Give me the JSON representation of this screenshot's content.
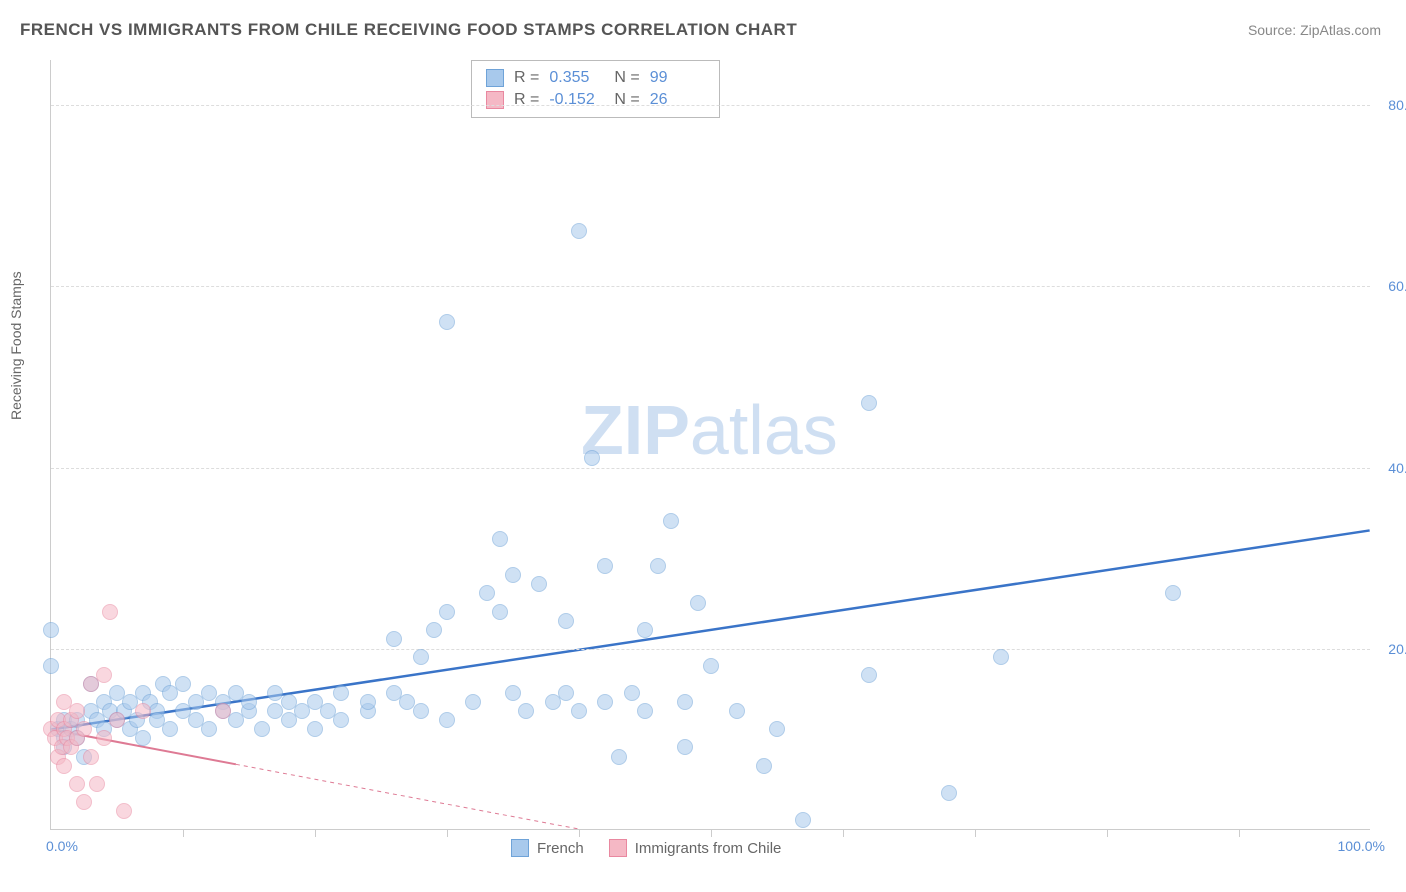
{
  "title": "FRENCH VS IMMIGRANTS FROM CHILE RECEIVING FOOD STAMPS CORRELATION CHART",
  "source": "Source: ZipAtlas.com",
  "watermark_zip": "ZIP",
  "watermark_atlas": "atlas",
  "y_axis_label": "Receiving Food Stamps",
  "chart": {
    "type": "scatter",
    "xlim": [
      0,
      100
    ],
    "ylim": [
      0,
      85
    ],
    "ytick_labels": [
      "20.0%",
      "40.0%",
      "60.0%",
      "80.0%"
    ],
    "ytick_values": [
      20,
      40,
      60,
      80
    ],
    "xtick_values": [
      10,
      20,
      30,
      40,
      50,
      60,
      70,
      80,
      90
    ],
    "x_origin_label": "0.0%",
    "x_max_label": "100.0%",
    "grid_color": "#dddddd",
    "background": "#ffffff",
    "series": [
      {
        "name": "French",
        "label": "French",
        "color_fill": "#a8c9ec",
        "color_stroke": "#6fa3d8",
        "marker_radius": 8,
        "fill_opacity": 0.55,
        "R": "0.355",
        "N": "99",
        "trend": {
          "x1": 0,
          "y1": 11,
          "x2": 100,
          "y2": 33,
          "color": "#3a74c8",
          "width": 2.5,
          "solid_to_x": 100
        },
        "points": [
          [
            0,
            22
          ],
          [
            0,
            18
          ],
          [
            0.5,
            11
          ],
          [
            1,
            12
          ],
          [
            1,
            10
          ],
          [
            1,
            9
          ],
          [
            1.5,
            11
          ],
          [
            2,
            10
          ],
          [
            2,
            12
          ],
          [
            2.5,
            8
          ],
          [
            3,
            13
          ],
          [
            3,
            16
          ],
          [
            3.5,
            12
          ],
          [
            4,
            14
          ],
          [
            4,
            11
          ],
          [
            4.5,
            13
          ],
          [
            5,
            12
          ],
          [
            5,
            15
          ],
          [
            5.5,
            13
          ],
          [
            6,
            14
          ],
          [
            6,
            11
          ],
          [
            6.5,
            12
          ],
          [
            7,
            15
          ],
          [
            7,
            10
          ],
          [
            7.5,
            14
          ],
          [
            8,
            13
          ],
          [
            8,
            12
          ],
          [
            8.5,
            16
          ],
          [
            9,
            11
          ],
          [
            9,
            15
          ],
          [
            10,
            13
          ],
          [
            10,
            16
          ],
          [
            11,
            14
          ],
          [
            11,
            12
          ],
          [
            12,
            15
          ],
          [
            12,
            11
          ],
          [
            13,
            14
          ],
          [
            13,
            13
          ],
          [
            14,
            15
          ],
          [
            14,
            12
          ],
          [
            15,
            13
          ],
          [
            15,
            14
          ],
          [
            16,
            11
          ],
          [
            17,
            13
          ],
          [
            17,
            15
          ],
          [
            18,
            14
          ],
          [
            18,
            12
          ],
          [
            19,
            13
          ],
          [
            20,
            14
          ],
          [
            20,
            11
          ],
          [
            21,
            13
          ],
          [
            22,
            15
          ],
          [
            22,
            12
          ],
          [
            24,
            13
          ],
          [
            24,
            14
          ],
          [
            26,
            15
          ],
          [
            26,
            21
          ],
          [
            27,
            14
          ],
          [
            28,
            19
          ],
          [
            28,
            13
          ],
          [
            29,
            22
          ],
          [
            30,
            24
          ],
          [
            30,
            12
          ],
          [
            30,
            56
          ],
          [
            32,
            14
          ],
          [
            33,
            26
          ],
          [
            34,
            32
          ],
          [
            34,
            24
          ],
          [
            35,
            28
          ],
          [
            35,
            15
          ],
          [
            36,
            13
          ],
          [
            37,
            27
          ],
          [
            38,
            14
          ],
          [
            39,
            23
          ],
          [
            39,
            15
          ],
          [
            40,
            13
          ],
          [
            40,
            66
          ],
          [
            41,
            41
          ],
          [
            42,
            29
          ],
          [
            42,
            14
          ],
          [
            43,
            8
          ],
          [
            44,
            15
          ],
          [
            45,
            22
          ],
          [
            45,
            13
          ],
          [
            46,
            29
          ],
          [
            47,
            34
          ],
          [
            48,
            9
          ],
          [
            48,
            14
          ],
          [
            49,
            25
          ],
          [
            50,
            18
          ],
          [
            52,
            13
          ],
          [
            54,
            7
          ],
          [
            55,
            11
          ],
          [
            57,
            1
          ],
          [
            62,
            17
          ],
          [
            62,
            47
          ],
          [
            68,
            4
          ],
          [
            72,
            19
          ],
          [
            85,
            26
          ]
        ]
      },
      {
        "name": "Immigrants from Chile",
        "label": "Immigrants from Chile",
        "color_fill": "#f5b8c5",
        "color_stroke": "#e988a0",
        "marker_radius": 8,
        "fill_opacity": 0.55,
        "R": "-0.152",
        "N": "26",
        "trend": {
          "x1": 0,
          "y1": 11,
          "x2": 40,
          "y2": 0,
          "color": "#de7a94",
          "width": 2,
          "solid_to_x": 14
        },
        "points": [
          [
            0,
            11
          ],
          [
            0.3,
            10
          ],
          [
            0.5,
            12
          ],
          [
            0.5,
            8
          ],
          [
            0.8,
            9
          ],
          [
            1,
            11
          ],
          [
            1,
            14
          ],
          [
            1,
            7
          ],
          [
            1.2,
            10
          ],
          [
            1.5,
            12
          ],
          [
            1.5,
            9
          ],
          [
            2,
            13
          ],
          [
            2,
            10
          ],
          [
            2,
            5
          ],
          [
            2.5,
            11
          ],
          [
            2.5,
            3
          ],
          [
            3,
            16
          ],
          [
            3,
            8
          ],
          [
            3.5,
            5
          ],
          [
            4,
            17
          ],
          [
            4,
            10
          ],
          [
            4.5,
            24
          ],
          [
            5,
            12
          ],
          [
            5.5,
            2
          ],
          [
            7,
            13
          ],
          [
            13,
            13
          ]
        ]
      }
    ],
    "stats_legend": {
      "r_label": "R  =",
      "n_label": "N  ="
    },
    "bottom_legend": {
      "items": [
        "French",
        "Immigrants from Chile"
      ]
    }
  }
}
